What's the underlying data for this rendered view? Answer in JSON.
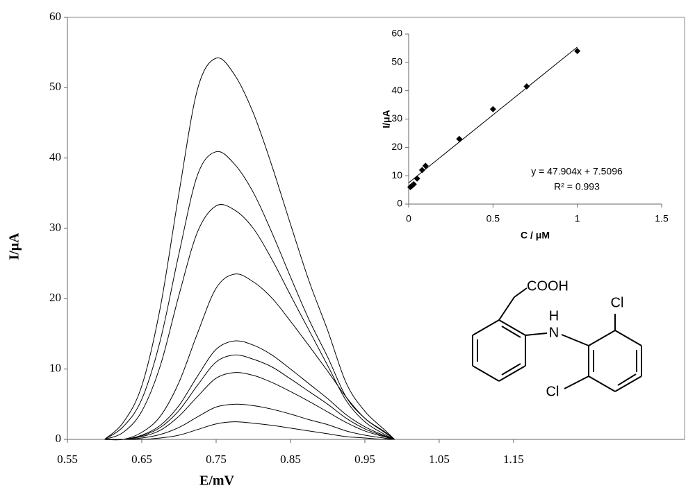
{
  "chart_data": [
    {
      "type": "line",
      "x_label": "E/mV",
      "y_label": "I/μA",
      "x": [
        0.6,
        0.625,
        0.65,
        0.675,
        0.7,
        0.725,
        0.75,
        0.775,
        0.8,
        0.825,
        0.85,
        0.875,
        0.9,
        0.925,
        0.95,
        0.975,
        0.99
      ],
      "series": [
        {
          "color": "#000000",
          "values": [
            0,
            2.4,
            7.6,
            18.8,
            35,
            49.8,
            54.2,
            51.8,
            46.4,
            38.9,
            30.6,
            22.5,
            15.5,
            8,
            4,
            1.5,
            0
          ]
        },
        {
          "color": "#000000",
          "values": [
            0,
            1.8,
            5.7,
            14.1,
            26.4,
            37.6,
            40.9,
            39.1,
            35.1,
            29.4,
            23.1,
            17.0,
            11.7,
            6.0,
            3.0,
            1.1,
            0
          ]
        },
        {
          "color": "#000000",
          "values": [
            0,
            1.0,
            4.0,
            10.5,
            20.5,
            29.5,
            33.2,
            32.6,
            30.0,
            25.6,
            20.5,
            15.5,
            10.5,
            5.5,
            2.5,
            0.8,
            0
          ]
        },
        {
          "color": "#000000",
          "values": [
            0,
            0,
            1.0,
            3.3,
            8.1,
            15.1,
            21.5,
            23.5,
            22.4,
            20.1,
            16.8,
            13.3,
            9.7,
            6.0,
            3.0,
            1.2,
            0
          ]
        },
        {
          "color": "#000000",
          "values": [
            0,
            0,
            0.6,
            2.0,
            4.8,
            9.0,
            12.8,
            14.0,
            13.4,
            12.0,
            10.0,
            7.9,
            5.8,
            3.5,
            1.8,
            0.6,
            0
          ]
        },
        {
          "color": "#000000",
          "values": [
            0,
            0,
            0.5,
            1.7,
            4.1,
            7.7,
            11.0,
            12.0,
            11.4,
            10.3,
            8.6,
            6.8,
            5.0,
            3.0,
            1.5,
            0.5,
            0
          ]
        },
        {
          "color": "#000000",
          "values": [
            0,
            0,
            0.4,
            1.3,
            3.3,
            6.1,
            8.7,
            9.5,
            9.1,
            8.1,
            6.8,
            5.4,
            3.9,
            2.4,
            1.2,
            0.4,
            0
          ]
        },
        {
          "color": "#000000",
          "values": [
            0,
            0,
            0.2,
            0.7,
            1.7,
            3.2,
            4.6,
            5.0,
            4.8,
            4.3,
            3.6,
            2.8,
            2.1,
            1.2,
            0.6,
            0.2,
            0
          ]
        },
        {
          "color": "#000000",
          "values": [
            0,
            0,
            0,
            0.2,
            0.6,
            1.4,
            2.2,
            2.5,
            2.3,
            2.0,
            1.6,
            1.2,
            0.8,
            0.4,
            0.2,
            0,
            0
          ]
        }
      ],
      "xlim": [
        0.55,
        1.38
      ],
      "xticks": [
        0.55,
        0.65,
        0.75,
        0.85,
        0.95,
        1.05,
        1.15
      ],
      "ylim": [
        0,
        60
      ],
      "yticks": [
        0,
        10,
        20,
        30,
        40,
        50,
        60
      ],
      "annotations": [
        "COOH",
        "H",
        "N",
        "Cl",
        "Cl"
      ]
    },
    {
      "type": "scatter",
      "x_label": "C / μM",
      "y_label": "I/μA",
      "x": [
        0.01,
        0.02,
        0.03,
        0.05,
        0.08,
        0.1,
        0.3,
        0.5,
        0.7,
        1
      ],
      "values": [
        6,
        6.5,
        7,
        9,
        12,
        13.5,
        23,
        33.5,
        41.5,
        54
      ],
      "color": "#000000",
      "xlim": [
        0,
        1.5
      ],
      "xticks": [
        0,
        0.5,
        1,
        1.5
      ],
      "ylim": [
        0,
        60
      ],
      "yticks": [
        0,
        10,
        20,
        30,
        40,
        50,
        60
      ],
      "trendline": {
        "slope": 47.904,
        "intercept": 7.5096,
        "equation": "y = 47.904x + 7.5096",
        "r2_label": "R² = 0.993"
      }
    }
  ]
}
